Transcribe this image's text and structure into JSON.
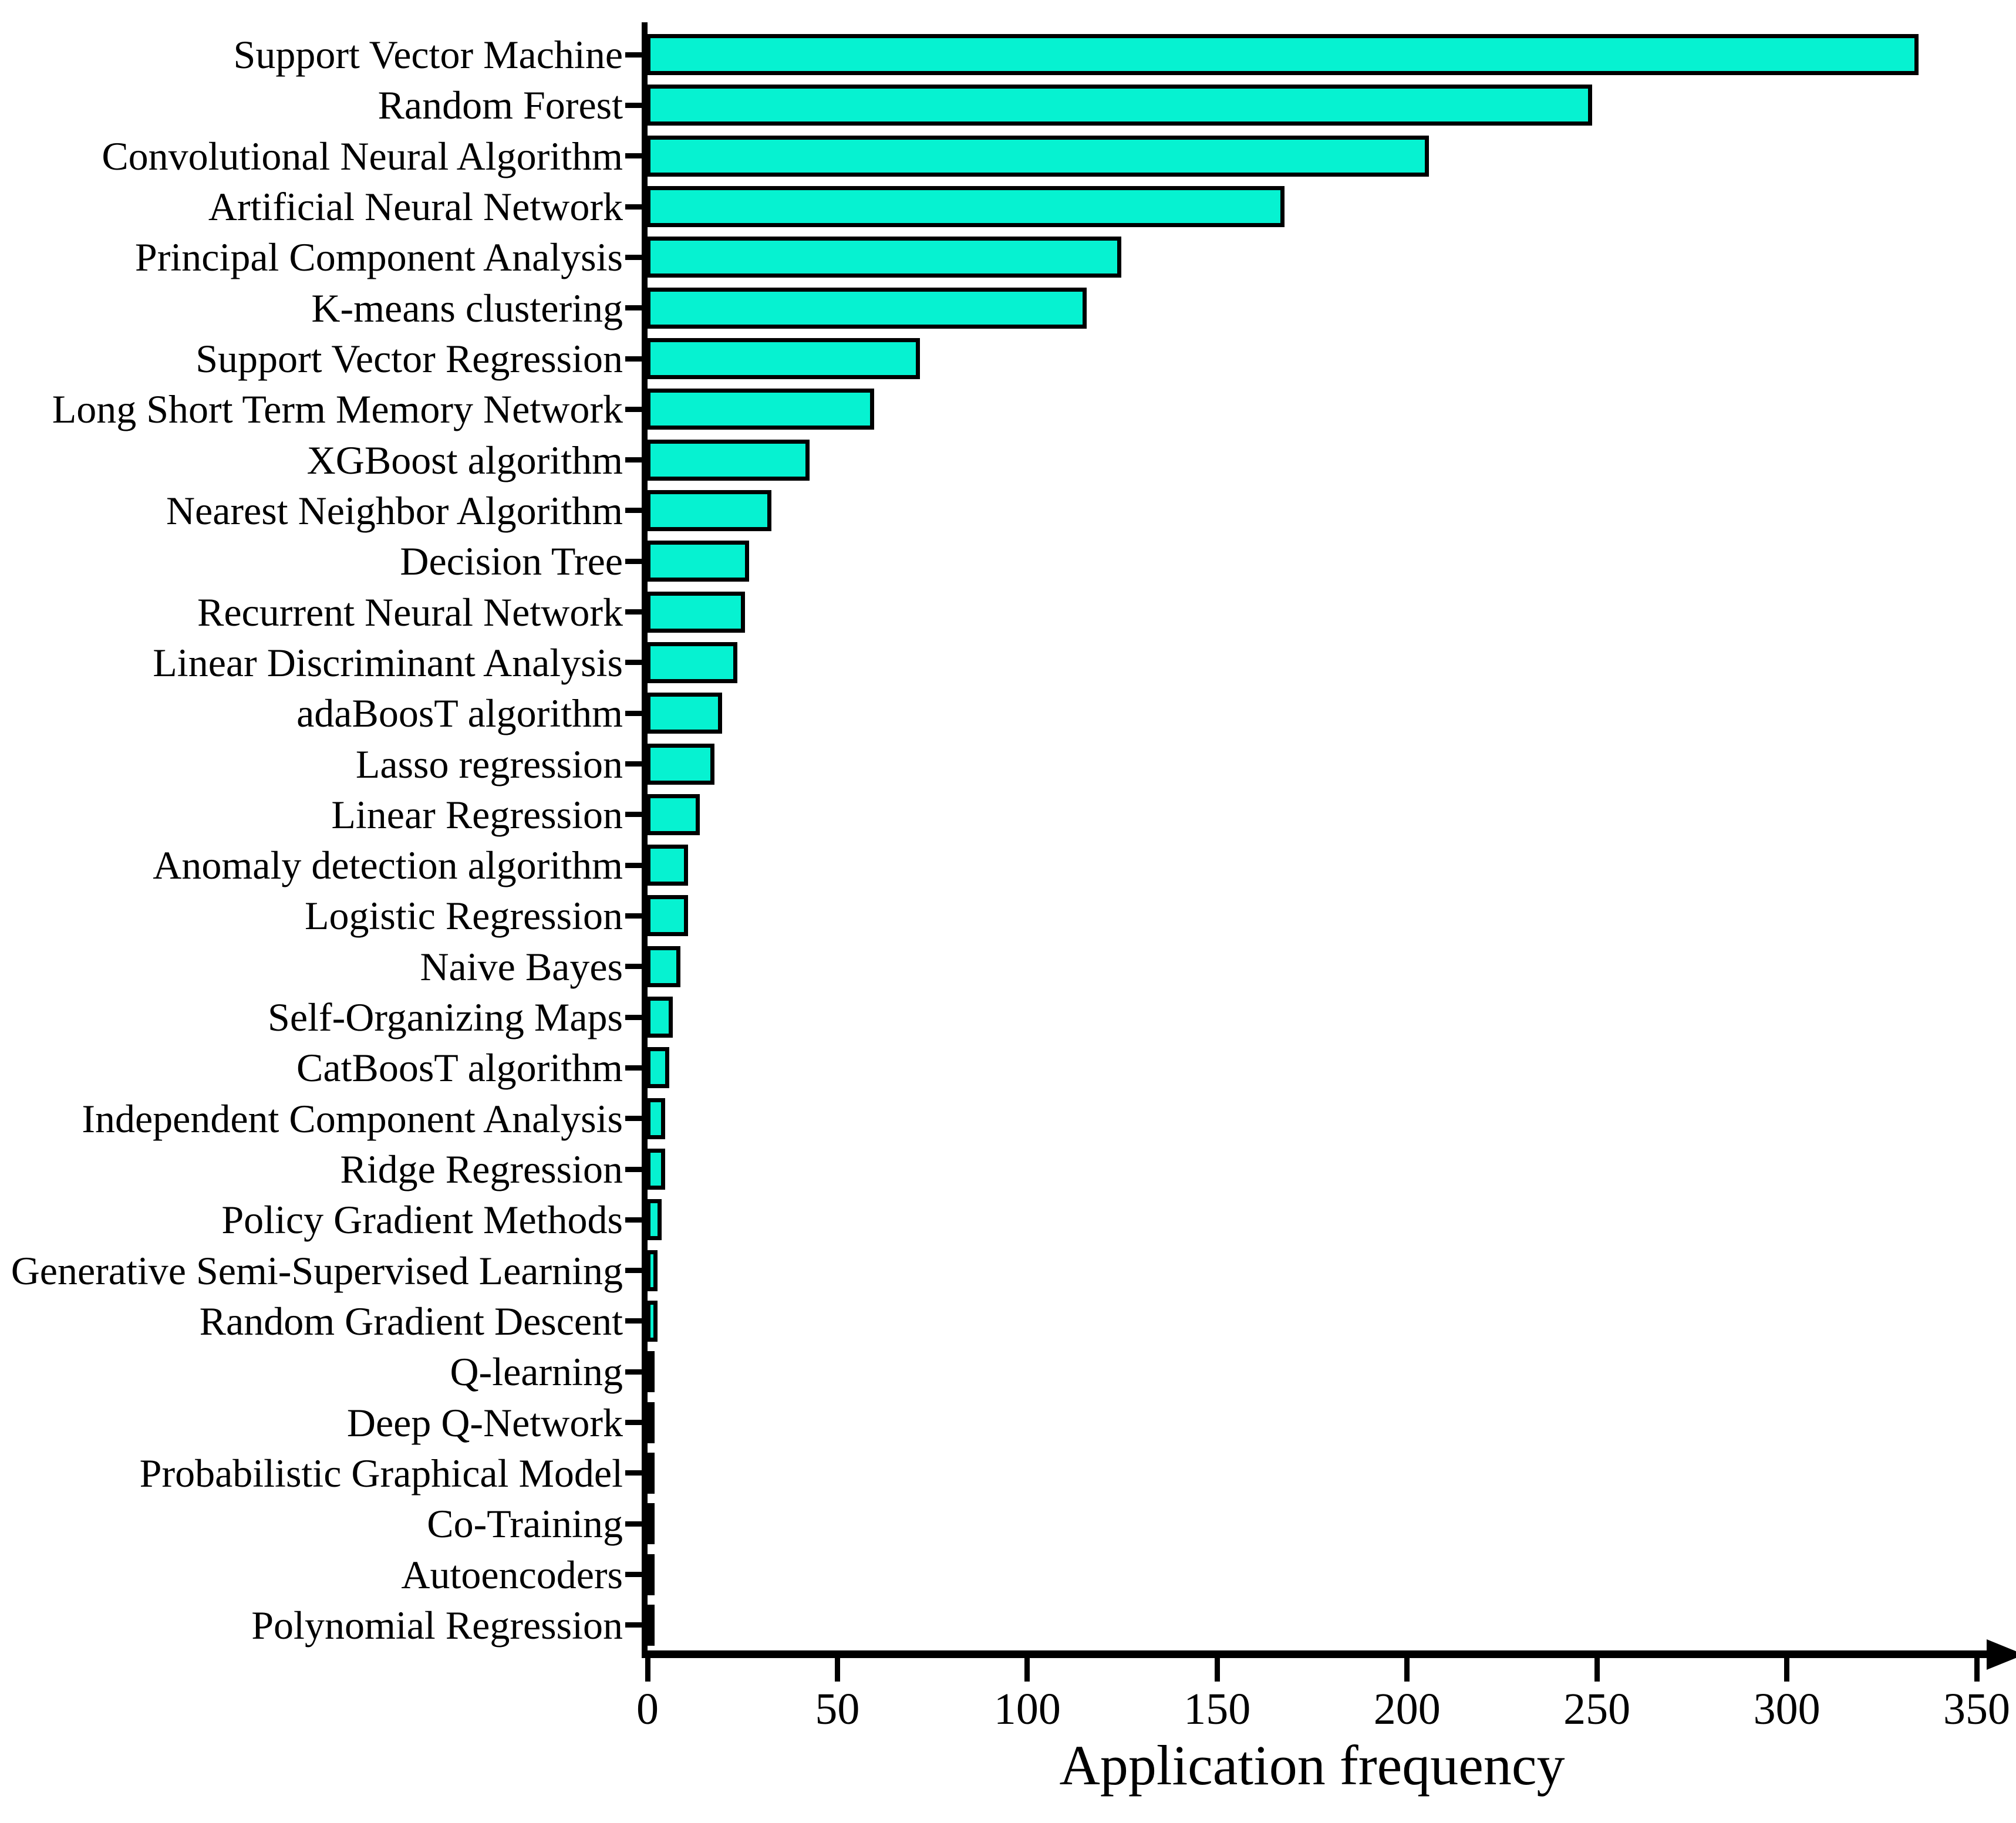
{
  "chart_data": {
    "type": "bar",
    "orientation": "horizontal",
    "title": "",
    "xlabel": "Application frequency",
    "ylabel": "",
    "xlim": [
      0,
      350
    ],
    "x_ticks": [
      0,
      50,
      100,
      150,
      200,
      250,
      300,
      350
    ],
    "grid": false,
    "legend": false,
    "categories": [
      "Support Vector Machine",
      "Random Forest",
      "Convolutional Neural Algorithm",
      "Artificial Neural Network",
      "Principal Component Analysis",
      "K-means clustering",
      "Support Vector Regression",
      "Long Short Term Memory Network",
      "XGBoost algorithm",
      "Nearest Neighbor Algorithm",
      "Decision Tree",
      "Recurrent Neural Network",
      "Linear Discriminant Analysis",
      "adaBoosT algorithm",
      "Lasso regression",
      "Linear Regression",
      "Anomaly detection algorithm",
      "Logistic Regression",
      "Naive Bayes",
      "Self-Organizing Maps",
      "CatBoosT algorithm",
      "Independent Component Analysis",
      "Ridge Regression",
      "Policy Gradient Methods",
      "Generative Semi-Supervised Learning",
      "Random Gradient Descent",
      "Q-learning",
      "Deep Q-Network",
      "Probabilistic Graphical Model",
      "Co-Training",
      "Autoencoders",
      "Polynomial Regression"
    ],
    "values": [
      335,
      249,
      206,
      168,
      125,
      116,
      72,
      60,
      43,
      33,
      27,
      26,
      24,
      20,
      18,
      14,
      11,
      11,
      9,
      7,
      6,
      5,
      5,
      4,
      3,
      3,
      2,
      2,
      1,
      1,
      1,
      1
    ],
    "colors": {
      "bar_fill": "#06F2D1",
      "bar_border": "#000000",
      "axis": "#000000",
      "text": "#000000",
      "background": "#FFFFFF"
    }
  }
}
